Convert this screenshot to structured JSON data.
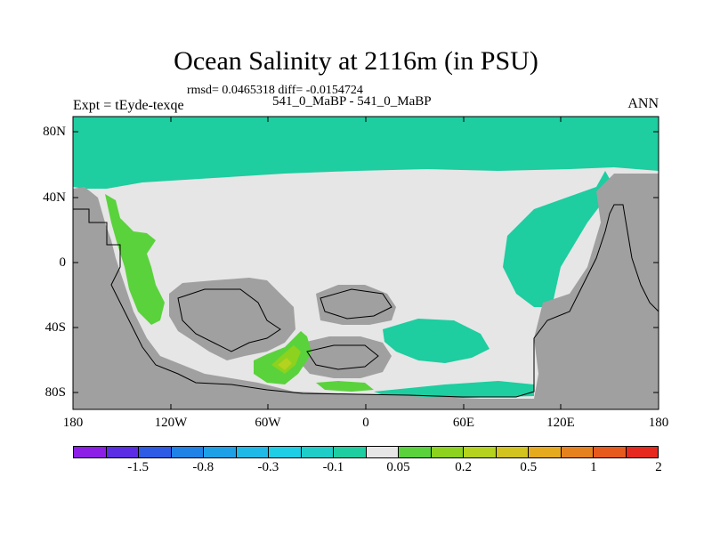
{
  "title": "Ocean Salinity at 2116m (in PSU)",
  "stats": "rmsd= 0.0465318 diff= -0.0154724",
  "experiments": "541_0_MaBP - 541_0_MaBP",
  "expt_label": "Expt = tEyde-texqe",
  "season": "ANN",
  "lat_ticks": [
    "80N",
    "40N",
    "0",
    "40S",
    "80S"
  ],
  "lon_ticks": [
    "180",
    "120W",
    "60W",
    "0",
    "60E",
    "120E",
    "180"
  ],
  "colorbar": {
    "colors": [
      "#8c1ee6",
      "#5b2ee6",
      "#2e5be6",
      "#1e82e6",
      "#1ea0e6",
      "#1eb9e6",
      "#1ecde6",
      "#1ecdc8",
      "#1ecda0",
      "#e6e6e6",
      "#5ad23c",
      "#8cd21e",
      "#b4d21e",
      "#d2c31e",
      "#e6aa1e",
      "#e6821e",
      "#e65a1e",
      "#e6281e"
    ],
    "labels": [
      "-1.5",
      "-0.8",
      "-0.3",
      "-0.1",
      "0.05",
      "0.2",
      "0.5",
      "1",
      "2"
    ]
  },
  "map_colors": {
    "land": "#a0a0a0",
    "neutral": "#e6e6e6",
    "negative": "#1ecda0",
    "positive_low": "#5ad23c",
    "positive_mid": "#8cd21e",
    "positive_high": "#b4d21e"
  }
}
